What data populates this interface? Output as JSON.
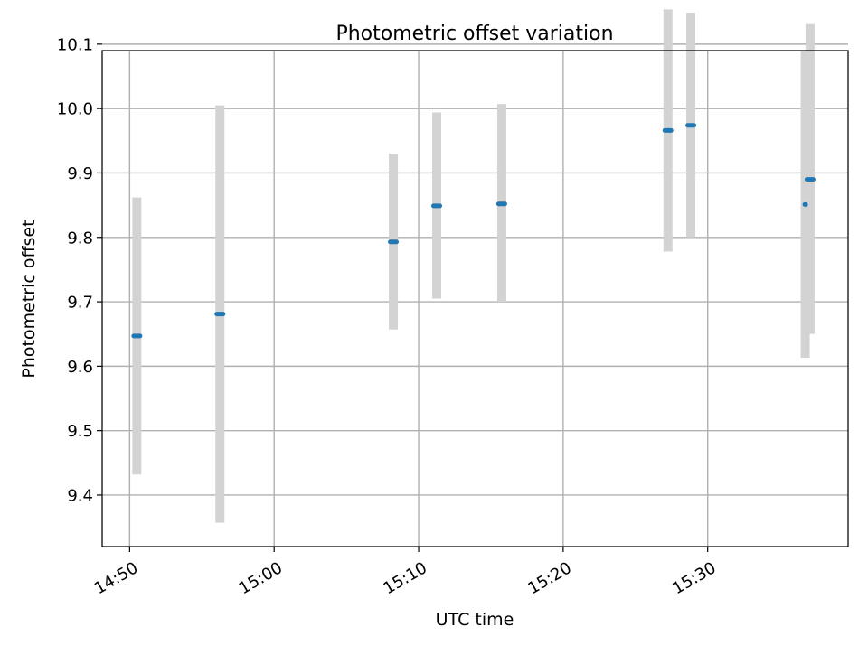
{
  "chart_data": {
    "type": "scatter",
    "title": "Photometric offset variation",
    "xlabel": "UTC time",
    "ylabel": "Photometric offset",
    "x_axis": {
      "type": "time",
      "range": [
        "14:48:06",
        "15:39:43"
      ],
      "ticks": [
        "14:50",
        "15:00",
        "15:10",
        "15:20",
        "15:30"
      ]
    },
    "y_axis": {
      "range": [
        9.32,
        10.09
      ],
      "ticks": [
        "9.4",
        "9.5",
        "9.6",
        "9.7",
        "9.8",
        "9.9",
        "10.0",
        "10.1"
      ]
    },
    "grid": true,
    "colors": {
      "points": "#1f77b4",
      "error_bars": "#d3d3d3",
      "grid": "#b0b0b0"
    },
    "points": [
      {
        "time": "14:50:30",
        "value": 9.647,
        "low": 9.432,
        "high": 9.862
      },
      {
        "time": "14:56:15",
        "value": 9.681,
        "low": 9.357,
        "high": 10.005
      },
      {
        "time": "15:08:15",
        "value": 9.793,
        "low": 9.657,
        "high": 9.93
      },
      {
        "time": "15:11:15",
        "value": 9.849,
        "low": 9.705,
        "high": 9.994
      },
      {
        "time": "15:15:45",
        "value": 9.852,
        "low": 9.7,
        "high": 10.007
      },
      {
        "time": "15:27:15",
        "value": 9.966,
        "low": 9.778,
        "high": 10.154
      },
      {
        "time": "15:28:50",
        "value": 9.974,
        "low": 9.8,
        "high": 10.149
      },
      {
        "time": "15:36:45",
        "value": 9.851,
        "low": 9.613,
        "high": 10.089
      },
      {
        "time": "15:37:05",
        "value": 9.89,
        "low": 9.65,
        "high": 10.131
      }
    ]
  }
}
